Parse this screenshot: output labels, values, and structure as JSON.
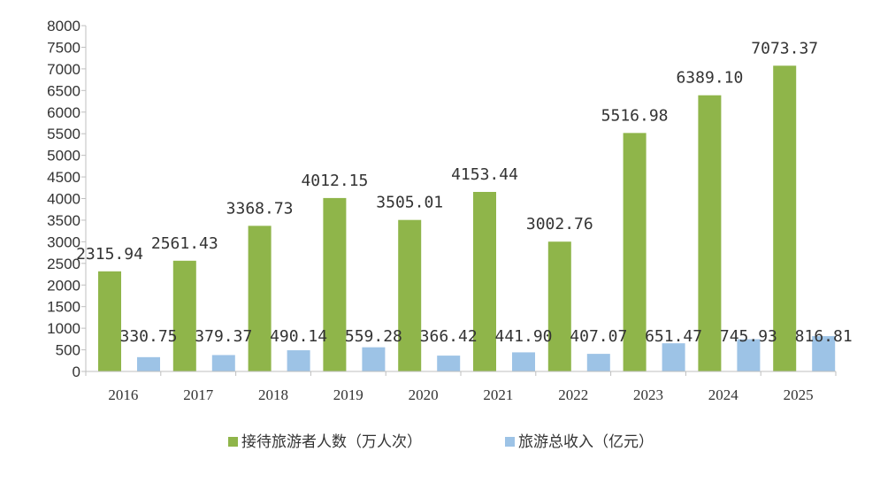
{
  "chart_data": {
    "type": "bar",
    "title": "",
    "xlabel": "",
    "ylabel": "",
    "categories": [
      "2016",
      "2017",
      "2018",
      "2019",
      "2020",
      "2021",
      "2022",
      "2023",
      "2024",
      "2025"
    ],
    "ylim": [
      0,
      8000
    ],
    "yticks": [
      0,
      500,
      1000,
      1500,
      2000,
      2500,
      3000,
      3500,
      4000,
      4500,
      5000,
      5500,
      6000,
      6500,
      7000,
      7500,
      8000
    ],
    "grid": false,
    "legend_position": "bottom",
    "series": [
      {
        "name": "接待旅游者人数（万人次）",
        "color": "#8fb54a",
        "values": [
          2315.94,
          2561.43,
          3368.73,
          4012.15,
          3505.01,
          4153.44,
          3002.76,
          5516.98,
          6389.1,
          7073.37
        ],
        "labels": [
          "2315.94",
          "2561.43",
          "3368.73",
          "4012.15",
          "3505.01",
          "4153.44",
          "3002.76",
          "5516.98",
          "6389.10",
          "7073.37"
        ]
      },
      {
        "name": "旅游总收入（亿元）",
        "color": "#9dc3e6",
        "values": [
          330.75,
          379.37,
          490.14,
          559.28,
          366.42,
          441.9,
          407.07,
          651.47,
          745.93,
          816.81
        ],
        "labels": [
          "330.75",
          "379.37",
          "490.14",
          "559.28",
          "366.42",
          "441.90",
          "407.07",
          "651.47",
          "745.93",
          "816.81"
        ]
      }
    ]
  }
}
